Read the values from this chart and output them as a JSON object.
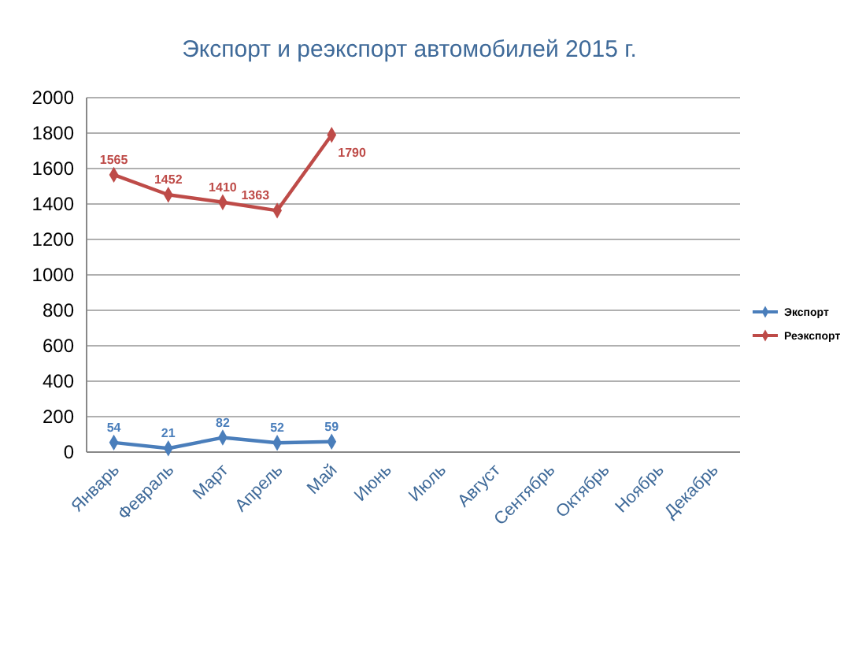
{
  "chart_data": {
    "type": "line",
    "title": "Экспорт и реэкспорт автомобилей 2015 г.",
    "categories": [
      "Январь",
      "Февраль",
      "Март",
      "Апрель",
      "Май",
      "Июнь",
      "Июль",
      "Август",
      "Сентябрь",
      "Октябрь",
      "Ноябрь",
      "Декабрь"
    ],
    "series": [
      {
        "name": "Экспорт",
        "color": "#4a7ebb",
        "values": [
          54,
          21,
          82,
          52,
          59,
          null,
          null,
          null,
          null,
          null,
          null,
          null
        ]
      },
      {
        "name": "Реэкспорт",
        "color": "#be4b48",
        "values": [
          1565,
          1452,
          1410,
          1363,
          1790,
          null,
          null,
          null,
          null,
          null,
          null,
          null
        ]
      }
    ],
    "ylim": [
      0,
      2000
    ],
    "yticks": [
      0,
      200,
      400,
      600,
      800,
      1000,
      1200,
      1400,
      1600,
      1800,
      2000
    ],
    "grid": "y",
    "legend": "right",
    "marker": "diamond",
    "data_labels": true
  }
}
